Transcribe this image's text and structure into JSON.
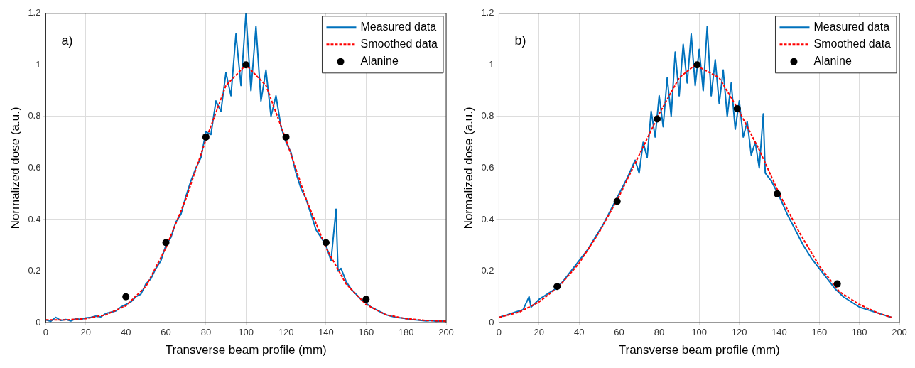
{
  "chart_data": [
    {
      "type": "line",
      "xlabel": "Transverse beam profile (mm)",
      "ylabel": "Normalized dose (a.u.)",
      "annotations": [
        "a)"
      ],
      "xlim": [
        0,
        200
      ],
      "xticks": [
        0,
        20,
        40,
        60,
        80,
        100,
        120,
        140,
        160,
        180,
        200
      ],
      "ylim": [
        0,
        1.2
      ],
      "yticks": [
        0,
        0.2,
        0.4,
        0.6,
        0.8,
        1,
        1.2
      ],
      "grid": true,
      "legend": "top right",
      "series": [
        {
          "name": "Measured data",
          "type": "line",
          "color": "#0072bd",
          "line_style": "solid",
          "marker": "none",
          "x": [
            0,
            2.5,
            5,
            7.5,
            10,
            12.5,
            15,
            17.5,
            20,
            22.5,
            25,
            27.5,
            30,
            32.5,
            35,
            37.5,
            40,
            42.5,
            45,
            47.5,
            50,
            52.5,
            55,
            57.5,
            60,
            62.5,
            65,
            67.5,
            70,
            72.5,
            75,
            77.5,
            80,
            82.5,
            85,
            87.5,
            90,
            92.5,
            95,
            97.5,
            100,
            102.5,
            105,
            107.5,
            110,
            112.5,
            115,
            117.5,
            120,
            122.5,
            125,
            127.5,
            130,
            132.5,
            135,
            137.5,
            140,
            142.5,
            145,
            146,
            147.5,
            150,
            152.5,
            155,
            157.5,
            160,
            162.5,
            165,
            167.5,
            170,
            172.5,
            175,
            177.5,
            180,
            182.5,
            185,
            187.5,
            190,
            192.5,
            195,
            197.5,
            200
          ],
          "values": [
            0.01,
            0.005,
            0.02,
            0.008,
            0.012,
            0.006,
            0.015,
            0.012,
            0.018,
            0.02,
            0.025,
            0.022,
            0.035,
            0.04,
            0.045,
            0.06,
            0.07,
            0.08,
            0.1,
            0.11,
            0.15,
            0.17,
            0.21,
            0.24,
            0.3,
            0.33,
            0.39,
            0.42,
            0.49,
            0.55,
            0.6,
            0.64,
            0.74,
            0.73,
            0.86,
            0.82,
            0.97,
            0.88,
            1.12,
            0.92,
            1.2,
            0.9,
            1.15,
            0.86,
            0.98,
            0.8,
            0.88,
            0.76,
            0.7,
            0.66,
            0.58,
            0.52,
            0.48,
            0.42,
            0.36,
            0.33,
            0.3,
            0.24,
            0.44,
            0.2,
            0.21,
            0.16,
            0.13,
            0.11,
            0.09,
            0.075,
            0.06,
            0.05,
            0.04,
            0.03,
            0.025,
            0.02,
            0.018,
            0.015,
            0.012,
            0.01,
            0.008,
            0.006,
            0.008,
            0.005,
            0.006,
            0.005
          ]
        },
        {
          "name": "Smoothed data",
          "type": "line",
          "color": "#ff0000",
          "line_style": "dashed",
          "marker": "none",
          "x": [
            0,
            10,
            20,
            30,
            40,
            50,
            60,
            70,
            80,
            90,
            100,
            110,
            120,
            130,
            140,
            150,
            160,
            170,
            180,
            190,
            200
          ],
          "values": [
            0.01,
            0.01,
            0.015,
            0.03,
            0.065,
            0.14,
            0.29,
            0.48,
            0.71,
            0.92,
            1.0,
            0.92,
            0.71,
            0.48,
            0.29,
            0.15,
            0.07,
            0.03,
            0.015,
            0.008,
            0.005
          ]
        },
        {
          "name": "Alanine",
          "type": "scatter",
          "color": "#000000",
          "marker": "circle",
          "x": [
            40,
            60,
            80,
            100,
            120,
            140,
            160
          ],
          "values": [
            0.1,
            0.31,
            0.72,
            1.0,
            0.72,
            0.31,
            0.09
          ]
        }
      ]
    },
    {
      "type": "line",
      "xlabel": "Transverse beam profile (mm)",
      "ylabel": "Normalized dose (a.u.)",
      "annotations": [
        "b)"
      ],
      "xlim": [
        0,
        200
      ],
      "xticks": [
        0,
        20,
        40,
        60,
        80,
        100,
        120,
        140,
        160,
        180,
        200
      ],
      "ylim": [
        0,
        1.2
      ],
      "yticks": [
        0,
        0.2,
        0.4,
        0.6,
        0.8,
        1,
        1.2
      ],
      "grid": true,
      "legend": "top right",
      "series": [
        {
          "name": "Measured data",
          "type": "line",
          "color": "#0072bd",
          "line_style": "solid",
          "marker": "none",
          "x": [
            0,
            4,
            8,
            12,
            15,
            16,
            20,
            24,
            28,
            32,
            36,
            40,
            44,
            48,
            52,
            56,
            60,
            64,
            68,
            70,
            72,
            74,
            76,
            78,
            80,
            82,
            84,
            86,
            88,
            90,
            92,
            94,
            96,
            98,
            100,
            102,
            104,
            106,
            108,
            110,
            112,
            114,
            116,
            118,
            120,
            122,
            124,
            126,
            128,
            130,
            132,
            133,
            136,
            140,
            144,
            148,
            152,
            156,
            160,
            164,
            168,
            172,
            176,
            180,
            184,
            188,
            192,
            196
          ],
          "values": [
            0.02,
            0.03,
            0.04,
            0.05,
            0.1,
            0.06,
            0.09,
            0.11,
            0.13,
            0.16,
            0.2,
            0.24,
            0.28,
            0.33,
            0.38,
            0.44,
            0.5,
            0.56,
            0.63,
            0.58,
            0.7,
            0.64,
            0.82,
            0.72,
            0.88,
            0.76,
            0.95,
            0.8,
            1.05,
            0.88,
            1.08,
            0.93,
            1.12,
            0.92,
            1.06,
            0.9,
            1.15,
            0.88,
            1.02,
            0.85,
            0.98,
            0.8,
            0.93,
            0.75,
            0.86,
            0.72,
            0.78,
            0.65,
            0.7,
            0.6,
            0.81,
            0.58,
            0.55,
            0.49,
            0.42,
            0.36,
            0.3,
            0.25,
            0.21,
            0.17,
            0.13,
            0.1,
            0.08,
            0.06,
            0.05,
            0.04,
            0.03,
            0.02
          ]
        },
        {
          "name": "Smoothed data",
          "type": "line",
          "color": "#ff0000",
          "line_style": "dashed",
          "marker": "none",
          "x": [
            0,
            10,
            20,
            30,
            40,
            50,
            60,
            70,
            80,
            90,
            98,
            110,
            120,
            130,
            140,
            150,
            160,
            170,
            180,
            190,
            196
          ],
          "values": [
            0.02,
            0.04,
            0.08,
            0.14,
            0.23,
            0.35,
            0.49,
            0.65,
            0.81,
            0.95,
            1.0,
            0.95,
            0.82,
            0.67,
            0.5,
            0.35,
            0.22,
            0.12,
            0.07,
            0.035,
            0.02
          ]
        },
        {
          "name": "Alanine",
          "type": "scatter",
          "color": "#000000",
          "marker": "circle",
          "x": [
            29,
            59,
            79,
            99,
            119,
            139,
            169
          ],
          "values": [
            0.14,
            0.47,
            0.79,
            1.0,
            0.83,
            0.5,
            0.15
          ]
        }
      ]
    }
  ]
}
